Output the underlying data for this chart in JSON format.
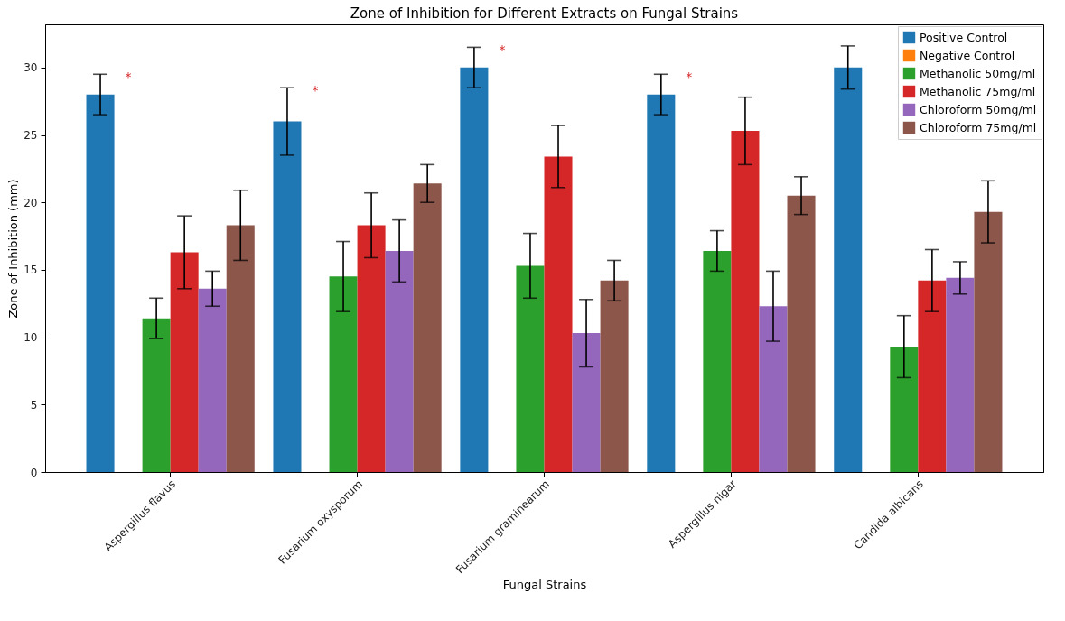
{
  "chart_data": {
    "type": "bar",
    "title": "Zone of Inhibition for Different Extracts on Fungal Strains",
    "xlabel": "Fungal Strains",
    "ylabel": "Zone of Inhibition (mm)",
    "categories": [
      "Aspergillus flavus",
      "Fusarium oxysporum",
      "Fusarium graminearum",
      "Aspergillus nigar",
      "Candida albicans"
    ],
    "series": [
      {
        "name": "Positive Control",
        "color": "#1f77b4",
        "values": [
          28,
          26,
          30,
          28,
          30
        ],
        "errors": [
          1.5,
          2.5,
          1.5,
          1.5,
          1.6
        ]
      },
      {
        "name": "Negative Control",
        "color": "#ff7f0e",
        "values": [
          0,
          0,
          0,
          0,
          0
        ]
      },
      {
        "name": "Methanolic 50mg/ml",
        "color": "#2ca02c",
        "values": [
          11.4,
          14.5,
          15.3,
          16.4,
          9.3
        ],
        "errors": [
          1.5,
          2.6,
          2.4,
          1.5,
          2.3
        ]
      },
      {
        "name": "Methanolic 75mg/ml",
        "color": "#d62728",
        "values": [
          16.3,
          18.3,
          23.4,
          25.3,
          14.2
        ],
        "errors": [
          2.7,
          2.4,
          2.3,
          2.5,
          2.3
        ]
      },
      {
        "name": "Chloroform 50mg/ml",
        "color": "#9467bd",
        "values": [
          13.6,
          16.4,
          10.3,
          12.3,
          14.4
        ],
        "errors": [
          1.3,
          2.3,
          2.5,
          2.6,
          1.2
        ]
      },
      {
        "name": "Chloroform 75mg/ml",
        "color": "#8c564b",
        "values": [
          18.3,
          21.4,
          14.2,
          20.5,
          19.3
        ],
        "errors": [
          2.6,
          1.4,
          1.5,
          1.4,
          2.3
        ]
      }
    ],
    "annotations": [
      "*",
      "*",
      "*",
      "*"
    ],
    "ylim": [
      0,
      33.2
    ],
    "yticks": [
      0,
      5,
      10,
      15,
      20,
      25,
      30
    ],
    "grid": false,
    "legend": "top right"
  }
}
